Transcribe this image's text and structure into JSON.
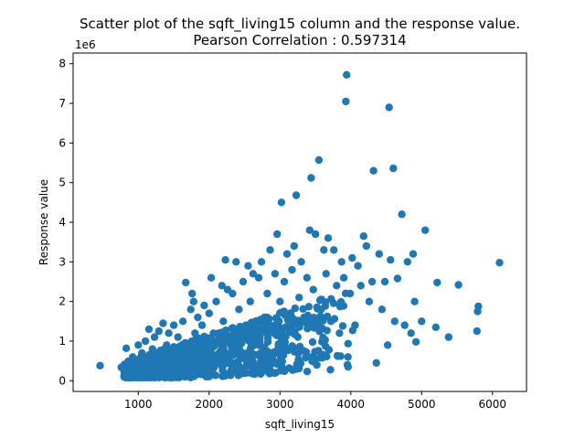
{
  "chart_data": {
    "type": "scatter",
    "title": "Scatter plot of the sqft_living15 column and the response value.",
    "subtitle": "Pearson Correlation : 0.597314",
    "xlabel": "sqft_living15",
    "ylabel": "Response value",
    "y_multiplier_label": "1e6",
    "xlim": [
      80,
      6480
    ],
    "ylim": [
      -0.27,
      8.27
    ],
    "x_ticks": [
      1000,
      2000,
      3000,
      4000,
      5000,
      6000
    ],
    "x_tick_labels": [
      "1000",
      "2000",
      "3000",
      "4000",
      "5000",
      "6000"
    ],
    "y_ticks": [
      0,
      1,
      2,
      3,
      4,
      5,
      6,
      7,
      8
    ],
    "y_tick_labels": [
      "0",
      "1",
      "2",
      "3",
      "4",
      "5",
      "6",
      "7",
      "8"
    ],
    "grid": false,
    "point_color": "#1f77b4",
    "points": [
      {
        "x": 460,
        "y": 0.38
      },
      {
        "x": 760,
        "y": 0.34
      },
      {
        "x": 800,
        "y": 0.25
      },
      {
        "x": 830,
        "y": 0.82
      },
      {
        "x": 860,
        "y": 0.4
      },
      {
        "x": 900,
        "y": 0.3
      },
      {
        "x": 920,
        "y": 0.6
      },
      {
        "x": 950,
        "y": 0.2
      },
      {
        "x": 980,
        "y": 0.45
      },
      {
        "x": 1000,
        "y": 0.9
      },
      {
        "x": 1020,
        "y": 0.35
      },
      {
        "x": 1050,
        "y": 0.7
      },
      {
        "x": 1080,
        "y": 0.25
      },
      {
        "x": 1100,
        "y": 1.0
      },
      {
        "x": 1120,
        "y": 0.5
      },
      {
        "x": 1150,
        "y": 1.3
      },
      {
        "x": 1180,
        "y": 0.3
      },
      {
        "x": 1200,
        "y": 0.8
      },
      {
        "x": 1230,
        "y": 1.1
      },
      {
        "x": 1260,
        "y": 0.4
      },
      {
        "x": 1290,
        "y": 1.25
      },
      {
        "x": 1320,
        "y": 0.6
      },
      {
        "x": 1350,
        "y": 1.45
      },
      {
        "x": 1380,
        "y": 0.35
      },
      {
        "x": 1400,
        "y": 0.9
      },
      {
        "x": 1430,
        "y": 1.2
      },
      {
        "x": 1460,
        "y": 0.5
      },
      {
        "x": 1500,
        "y": 1.4
      },
      {
        "x": 1530,
        "y": 0.7
      },
      {
        "x": 1560,
        "y": 1.1
      },
      {
        "x": 1600,
        "y": 0.4
      },
      {
        "x": 1630,
        "y": 1.5
      },
      {
        "x": 1670,
        "y": 2.48
      },
      {
        "x": 1700,
        "y": 0.8
      },
      {
        "x": 1740,
        "y": 1.8
      },
      {
        "x": 1760,
        "y": 2.2
      },
      {
        "x": 1780,
        "y": 2.0
      },
      {
        "x": 1800,
        "y": 1.2
      },
      {
        "x": 1840,
        "y": 1.6
      },
      {
        "x": 1870,
        "y": 0.5
      },
      {
        "x": 1900,
        "y": 1.4
      },
      {
        "x": 1930,
        "y": 1.9
      },
      {
        "x": 1960,
        "y": 0.9
      },
      {
        "x": 2000,
        "y": 1.7
      },
      {
        "x": 2030,
        "y": 2.6
      },
      {
        "x": 2060,
        "y": 1.2
      },
      {
        "x": 2100,
        "y": 2.0
      },
      {
        "x": 2140,
        "y": 0.7
      },
      {
        "x": 2180,
        "y": 2.4
      },
      {
        "x": 2200,
        "y": 1.5
      },
      {
        "x": 2230,
        "y": 3.05
      },
      {
        "x": 2260,
        "y": 2.3
      },
      {
        "x": 2300,
        "y": 1.1
      },
      {
        "x": 2330,
        "y": 2.2
      },
      {
        "x": 2380,
        "y": 3.0
      },
      {
        "x": 2420,
        "y": 1.8
      },
      {
        "x": 2450,
        "y": 0.6
      },
      {
        "x": 2480,
        "y": 2.5
      },
      {
        "x": 2520,
        "y": 1.4
      },
      {
        "x": 2550,
        "y": 2.9
      },
      {
        "x": 2580,
        "y": 2.0
      },
      {
        "x": 2620,
        "y": 2.7
      },
      {
        "x": 2660,
        "y": 1.0
      },
      {
        "x": 2700,
        "y": 2.6
      },
      {
        "x": 2740,
        "y": 3.0
      },
      {
        "x": 2780,
        "y": 1.6
      },
      {
        "x": 2820,
        "y": 2.2
      },
      {
        "x": 2860,
        "y": 3.3
      },
      {
        "x": 2900,
        "y": 1.3
      },
      {
        "x": 2930,
        "y": 2.7
      },
      {
        "x": 2960,
        "y": 3.7
      },
      {
        "x": 3000,
        "y": 2.0
      },
      {
        "x": 3020,
        "y": 4.5
      },
      {
        "x": 3060,
        "y": 2.5
      },
      {
        "x": 3100,
        "y": 3.2
      },
      {
        "x": 3130,
        "y": 1.4
      },
      {
        "x": 3170,
        "y": 2.8
      },
      {
        "x": 3200,
        "y": 3.4
      },
      {
        "x": 3230,
        "y": 4.68
      },
      {
        "x": 3270,
        "y": 2.1
      },
      {
        "x": 3300,
        "y": 3.0
      },
      {
        "x": 3340,
        "y": 1.6
      },
      {
        "x": 3380,
        "y": 2.6
      },
      {
        "x": 3420,
        "y": 3.8
      },
      {
        "x": 3440,
        "y": 5.12
      },
      {
        "x": 3470,
        "y": 2.3
      },
      {
        "x": 3500,
        "y": 3.7
      },
      {
        "x": 3550,
        "y": 5.57
      },
      {
        "x": 3580,
        "y": 1.8
      },
      {
        "x": 3620,
        "y": 3.3
      },
      {
        "x": 3650,
        "y": 2.7
      },
      {
        "x": 3680,
        "y": 3.6
      },
      {
        "x": 3720,
        "y": 1.5
      },
      {
        "x": 3760,
        "y": 3.3
      },
      {
        "x": 3800,
        "y": 2.4
      },
      {
        "x": 3840,
        "y": 1.2
      },
      {
        "x": 3870,
        "y": 3.0
      },
      {
        "x": 3900,
        "y": 2.6
      },
      {
        "x": 3930,
        "y": 7.05
      },
      {
        "x": 3940,
        "y": 7.72
      },
      {
        "x": 3960,
        "y": 0.6
      },
      {
        "x": 3990,
        "y": 2.2
      },
      {
        "x": 4020,
        "y": 3.1
      },
      {
        "x": 4060,
        "y": 1.4
      },
      {
        "x": 4100,
        "y": 2.9
      },
      {
        "x": 4140,
        "y": 2.4
      },
      {
        "x": 4180,
        "y": 3.65
      },
      {
        "x": 4220,
        "y": 3.4
      },
      {
        "x": 4260,
        "y": 2.0
      },
      {
        "x": 4300,
        "y": 2.5
      },
      {
        "x": 4320,
        "y": 5.3
      },
      {
        "x": 4360,
        "y": 0.45
      },
      {
        "x": 4400,
        "y": 3.2
      },
      {
        "x": 4440,
        "y": 1.8
      },
      {
        "x": 4480,
        "y": 2.5
      },
      {
        "x": 4520,
        "y": 0.9
      },
      {
        "x": 4540,
        "y": 6.9
      },
      {
        "x": 4560,
        "y": 3.05
      },
      {
        "x": 4600,
        "y": 5.36
      },
      {
        "x": 4620,
        "y": 1.5
      },
      {
        "x": 4660,
        "y": 2.58
      },
      {
        "x": 4720,
        "y": 4.2
      },
      {
        "x": 4760,
        "y": 1.4
      },
      {
        "x": 4800,
        "y": 3.0
      },
      {
        "x": 4850,
        "y": 1.2
      },
      {
        "x": 4880,
        "y": 3.2
      },
      {
        "x": 4900,
        "y": 2.0
      },
      {
        "x": 4920,
        "y": 0.98
      },
      {
        "x": 5000,
        "y": 1.5
      },
      {
        "x": 5050,
        "y": 3.8
      },
      {
        "x": 5200,
        "y": 1.35
      },
      {
        "x": 5220,
        "y": 2.48
      },
      {
        "x": 5380,
        "y": 1.1
      },
      {
        "x": 5520,
        "y": 2.42
      },
      {
        "x": 5780,
        "y": 1.25
      },
      {
        "x": 5790,
        "y": 1.75
      },
      {
        "x": 5800,
        "y": 1.88
      },
      {
        "x": 6100,
        "y": 2.98
      }
    ]
  }
}
